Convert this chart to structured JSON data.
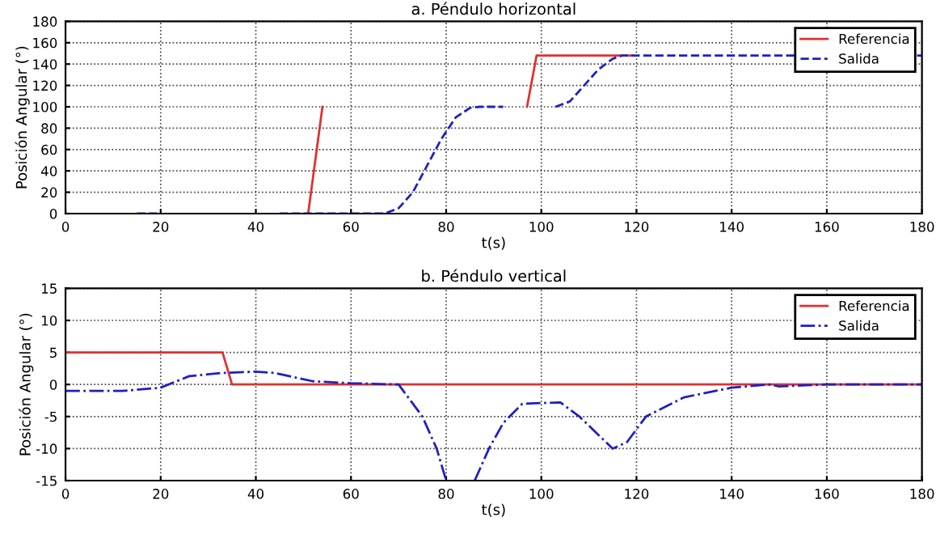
{
  "chart_data": [
    {
      "type": "line",
      "title": "a. Péndulo horizontal",
      "xlabel": "t(s)",
      "ylabel": "Posición Angular (°)",
      "xlim": [
        0,
        180
      ],
      "xticks": [
        0,
        20,
        40,
        60,
        80,
        100,
        120,
        140,
        160,
        180
      ],
      "ylim": [
        0,
        180
      ],
      "yticks": [
        0,
        20,
        40,
        60,
        80,
        100,
        120,
        140,
        160,
        180
      ],
      "grid": true,
      "legend": "top right",
      "series": [
        {
          "name": "Referencia",
          "color": "#e03030",
          "line_style": "solid",
          "x": [
            51,
            54,
            55,
            97,
            99,
            119
          ],
          "values": [
            0,
            100,
            null,
            100,
            148,
            148
          ]
        },
        {
          "name": "Salida",
          "color": "#2020c0",
          "line_style": "dashed",
          "x": [
            15,
            20,
            21,
            45,
            67,
            70,
            73,
            76,
            79,
            82,
            85,
            87,
            92,
            93,
            103,
            106,
            109,
            112,
            115,
            117,
            180
          ],
          "values": [
            0,
            0,
            null,
            0,
            0,
            5,
            20,
            45,
            70,
            90,
            99,
            100,
            100,
            null,
            100,
            105,
            120,
            135,
            145,
            148,
            148
          ]
        }
      ]
    },
    {
      "type": "line",
      "title": "b. Péndulo vertical",
      "xlabel": "t(s)",
      "ylabel": "Posición Angular (°)",
      "xlim": [
        0,
        180
      ],
      "xticks": [
        0,
        20,
        40,
        60,
        80,
        100,
        120,
        140,
        160,
        180
      ],
      "ylim": [
        -15,
        15
      ],
      "yticks": [
        -15,
        -10,
        -5,
        0,
        5,
        10,
        15
      ],
      "grid": true,
      "legend": "top right",
      "series": [
        {
          "name": "Referencia",
          "color": "#e03030",
          "line_style": "solid",
          "x": [
            0,
            33,
            35,
            180
          ],
          "values": [
            5,
            5,
            0,
            0
          ]
        },
        {
          "name": "Salida",
          "color": "#2020c0",
          "line_style": "dashdot",
          "x": [
            0,
            12,
            20,
            26,
            33,
            40,
            44,
            52,
            60,
            70,
            75,
            78,
            80,
            83,
            86,
            89,
            92,
            96,
            104,
            108,
            115,
            118,
            122,
            130,
            140,
            148,
            150,
            160,
            180
          ],
          "values": [
            -1,
            -1,
            -0.5,
            1.3,
            1.8,
            2,
            1.8,
            0.5,
            0.2,
            0,
            -5,
            -10,
            -15,
            null,
            -15,
            -10,
            -6,
            -3,
            -2.8,
            -5,
            -10,
            -9,
            -5,
            -2,
            -0.5,
            0,
            -0.3,
            0,
            0
          ]
        }
      ]
    }
  ]
}
